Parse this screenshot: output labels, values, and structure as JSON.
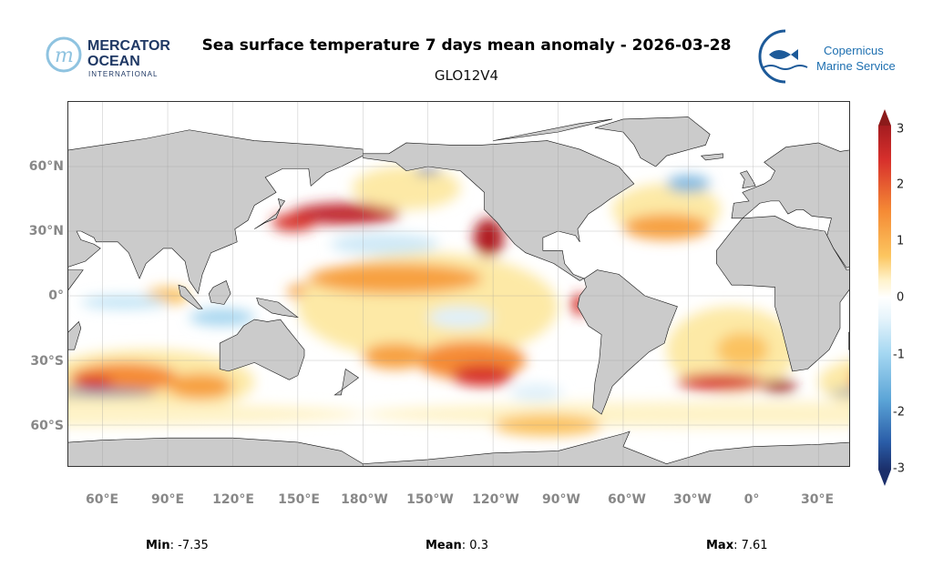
{
  "header": {
    "title": "Sea surface temperature 7 days mean anomaly - 2026-03-28",
    "subtitle": "GLO12V4"
  },
  "logos": {
    "left": {
      "line1": "MERCATOR",
      "line2": "OCEAN",
      "line3": "INTERNATIONAL"
    },
    "right": {
      "line1": "Copernicus",
      "line2": "Marine Service"
    }
  },
  "map": {
    "lon_labels": [
      "60°E",
      "90°E",
      "120°E",
      "150°E",
      "180°W",
      "150°W",
      "120°W",
      "90°W",
      "60°W",
      "30°W",
      "0°",
      "30°E"
    ],
    "lat_labels": [
      "60°N",
      "30°N",
      "0°",
      "30°S",
      "60°S"
    ]
  },
  "colorbar": {
    "labels": [
      "3",
      "2",
      "1",
      "0",
      "-1",
      "-2",
      "-3"
    ],
    "range": [
      -3,
      3
    ],
    "colors": {
      "max": "#8b1a1a",
      "high": "#d7302c",
      "mid_high": "#f58b35",
      "low_pos": "#fde9a6",
      "zero": "#ffffff",
      "low_neg": "#bfe3f5",
      "mid_low": "#5aa3d6",
      "min": "#1b2f6b"
    }
  },
  "stats": {
    "min_label": "Min",
    "min_value": ": -7.35",
    "mean_label": "Mean",
    "mean_value": ": 0.3",
    "max_label": "Max",
    "max_value": ": 7.61"
  }
}
